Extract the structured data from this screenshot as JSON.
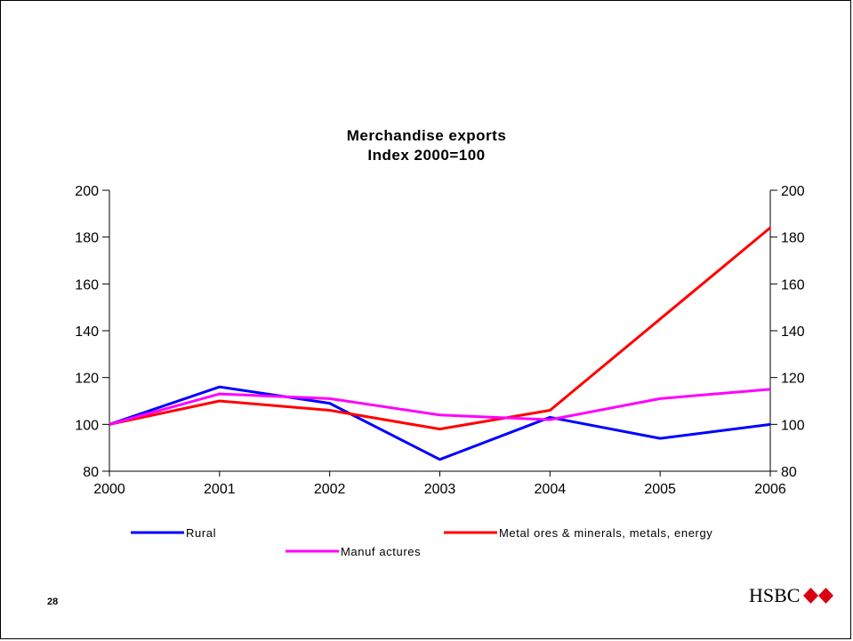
{
  "slide_number": "28",
  "logo": {
    "text": "HSBC",
    "icon": "hsbc-hexagon-icon",
    "red": "#db0011"
  },
  "chart_data": {
    "type": "line",
    "title": "Merchandise exports",
    "subtitle": "Index 2000=100",
    "x": [
      "2000",
      "2001",
      "2002",
      "2003",
      "2004",
      "2005",
      "2006"
    ],
    "ylim": [
      80,
      200
    ],
    "yticks": [
      80,
      100,
      120,
      140,
      160,
      180,
      200
    ],
    "grid": false,
    "legend_position": "bottom",
    "series": [
      {
        "name": "Rural",
        "color": "#0000ff",
        "values": [
          100,
          116,
          109,
          85,
          103,
          94,
          100
        ]
      },
      {
        "name": "Metal ores & minerals, metals, energy",
        "color": "#ff0000",
        "values": [
          100,
          110,
          106,
          98,
          106,
          145,
          184
        ]
      },
      {
        "name": "Manuf actures",
        "color": "#ff00ff",
        "values": [
          100,
          113,
          111,
          104,
          102,
          111,
          115
        ]
      }
    ]
  }
}
